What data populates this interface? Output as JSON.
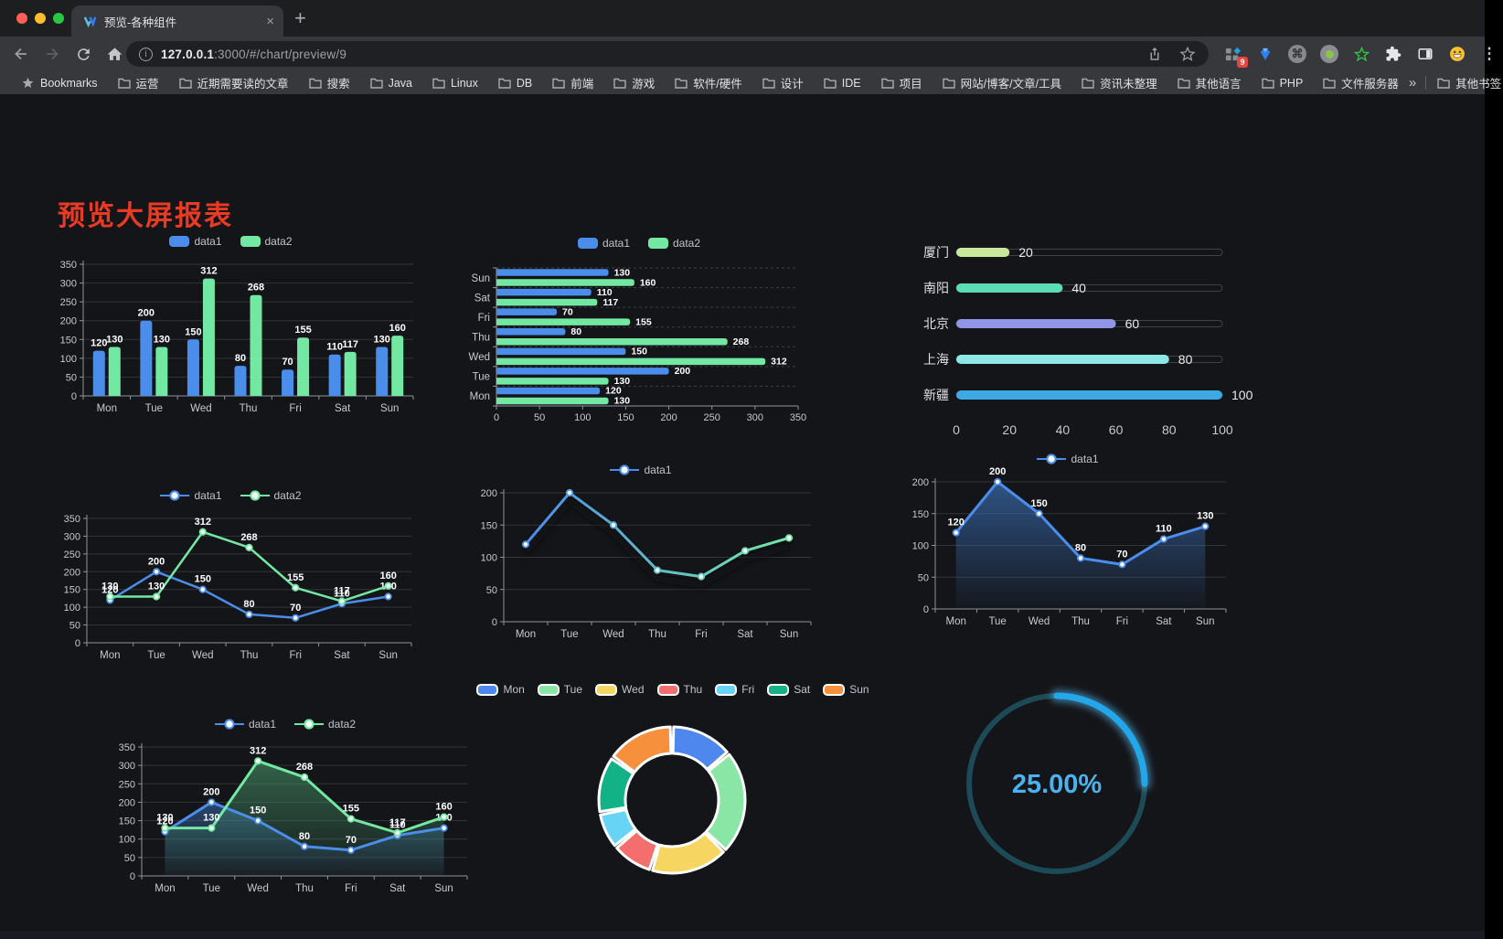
{
  "browser": {
    "tab": {
      "title": "预览-各种组件"
    },
    "new_tab_label": "+",
    "url": {
      "host": "127.0.0.1",
      "rest": ":3000/#/chart/preview/9"
    },
    "extension_badge": "9",
    "bookmarks_label": "Bookmarks",
    "bookmarks": [
      "运营",
      "近期需要读的文章",
      "搜索",
      "Java",
      "Linux",
      "DB",
      "前端",
      "游戏",
      "软件/硬件",
      "设计",
      "IDE",
      "项目",
      "网站/博客/文章/工具",
      "资讯未整理",
      "其他语言",
      "PHP",
      "文件服务器"
    ],
    "bookmarks_overflow": "»",
    "other_bookmarks": "其他书签"
  },
  "page": {
    "title": "预览大屏报表",
    "title_color": "#e93b23",
    "background": "#141519"
  },
  "chart_data": [
    {
      "id": "chart-bar-vertical",
      "type": "bar",
      "categories": [
        "Mon",
        "Tue",
        "Wed",
        "Thu",
        "Fri",
        "Sat",
        "Sun"
      ],
      "series": [
        {
          "name": "data1",
          "color": "#4b8dea",
          "values": [
            120,
            200,
            150,
            80,
            70,
            110,
            130
          ]
        },
        {
          "name": "data2",
          "color": "#73e8a3",
          "values": [
            130,
            130,
            312,
            268,
            155,
            117,
            160
          ]
        }
      ],
      "ylim": [
        0,
        350
      ],
      "ystep": 50,
      "grid": true,
      "value_labels": true,
      "legend_position": "top"
    },
    {
      "id": "chart-bar-horizontal",
      "type": "bar-horizontal",
      "categories": [
        "Mon",
        "Tue",
        "Wed",
        "Thu",
        "Fri",
        "Sat",
        "Sun"
      ],
      "display_order": "Sun-at-top",
      "series": [
        {
          "name": "data1",
          "color": "#4b8dea",
          "values": [
            120,
            200,
            150,
            80,
            70,
            110,
            130
          ]
        },
        {
          "name": "data2",
          "color": "#73e8a3",
          "values": [
            130,
            130,
            312,
            268,
            155,
            117,
            160
          ]
        }
      ],
      "xlim": [
        0,
        350
      ],
      "xstep": 50,
      "value_labels": true,
      "legend_position": "top"
    },
    {
      "id": "chart-capsule",
      "type": "capsule-bar",
      "items": [
        {
          "label": "厦门",
          "value": 20,
          "color": "#c9e89b"
        },
        {
          "label": "南阳",
          "value": 40,
          "color": "#5cdcb3"
        },
        {
          "label": "北京",
          "value": 60,
          "color": "#9095e8"
        },
        {
          "label": "上海",
          "value": 80,
          "color": "#8ce8e4"
        },
        {
          "label": "新疆",
          "value": 100,
          "color": "#3da8e2"
        }
      ],
      "xlim": [
        0,
        100
      ],
      "xticks": [
        0,
        20,
        40,
        60,
        80,
        100
      ]
    },
    {
      "id": "chart-line-two",
      "type": "line",
      "categories": [
        "Mon",
        "Tue",
        "Wed",
        "Thu",
        "Fri",
        "Sat",
        "Sun"
      ],
      "series": [
        {
          "name": "data1",
          "color": "#4b8dea",
          "values": [
            120,
            200,
            150,
            80,
            70,
            110,
            130
          ]
        },
        {
          "name": "data2",
          "color": "#73e8a3",
          "values": [
            130,
            130,
            312,
            268,
            155,
            117,
            160
          ]
        }
      ],
      "ylim": [
        0,
        350
      ],
      "ystep": 50,
      "value_labels": true,
      "markers": true,
      "legend_position": "top"
    },
    {
      "id": "chart-line-gradient",
      "type": "line-gradient",
      "categories": [
        "Mon",
        "Tue",
        "Wed",
        "Thu",
        "Fri",
        "Sat",
        "Sun"
      ],
      "series": [
        {
          "name": "data1",
          "values": [
            120,
            200,
            150,
            80,
            70,
            110,
            130
          ]
        }
      ],
      "gradient": [
        "#4b8dea",
        "#73e8a3"
      ],
      "ylim": [
        0,
        200
      ],
      "ystep": 50,
      "value_labels": false,
      "markers": true,
      "legend_position": "top"
    },
    {
      "id": "chart-area-single",
      "type": "area",
      "categories": [
        "Mon",
        "Tue",
        "Wed",
        "Thu",
        "Fri",
        "Sat",
        "Sun"
      ],
      "series": [
        {
          "name": "data1",
          "color": "#4b8dea",
          "fill_from": "rgba(58,110,180,0.70)",
          "fill_to": "rgba(58,110,180,0.03)",
          "values": [
            120,
            200,
            150,
            80,
            70,
            110,
            130
          ]
        }
      ],
      "ylim": [
        0,
        200
      ],
      "ystep": 50,
      "value_labels": true,
      "markers": true,
      "legend_position": "top"
    },
    {
      "id": "chart-area-double",
      "type": "area",
      "categories": [
        "Mon",
        "Tue",
        "Wed",
        "Thu",
        "Fri",
        "Sat",
        "Sun"
      ],
      "series": [
        {
          "name": "data1",
          "color": "#4b8dea",
          "fill_from": "rgba(60,110,180,0.55)",
          "fill_to": "rgba(60,110,180,0.04)",
          "values": [
            120,
            200,
            150,
            80,
            70,
            110,
            130
          ]
        },
        {
          "name": "data2",
          "color": "#73e8a3",
          "fill_from": "rgba(70,150,105,0.60)",
          "fill_to": "rgba(70,150,105,0.05)",
          "values": [
            130,
            130,
            312,
            268,
            155,
            117,
            160
          ]
        }
      ],
      "ylim": [
        0,
        350
      ],
      "ystep": 50,
      "value_labels": true,
      "markers": true,
      "legend_position": "top"
    },
    {
      "id": "chart-pie",
      "type": "pie",
      "shape": "donut",
      "legend_position": "top",
      "items": [
        {
          "label": "Mon",
          "value": 120,
          "color": "#4e87ee"
        },
        {
          "label": "Tue",
          "value": 200,
          "color": "#8ae6a5"
        },
        {
          "label": "Wed",
          "value": 150,
          "color": "#f6d660"
        },
        {
          "label": "Thu",
          "value": 80,
          "color": "#f56e6e"
        },
        {
          "label": "Fri",
          "value": 70,
          "color": "#67d4f5"
        },
        {
          "label": "Sat",
          "value": 110,
          "color": "#12b286"
        },
        {
          "label": "Sun",
          "value": 130,
          "color": "#f6903d"
        }
      ]
    },
    {
      "id": "chart-gauge",
      "type": "gauge",
      "value": 25,
      "min": 0,
      "max": 100,
      "display": "25.00%",
      "color": "#22a8ea",
      "track_color": "#1d4a57",
      "text_color": "#4ab2ee"
    }
  ]
}
